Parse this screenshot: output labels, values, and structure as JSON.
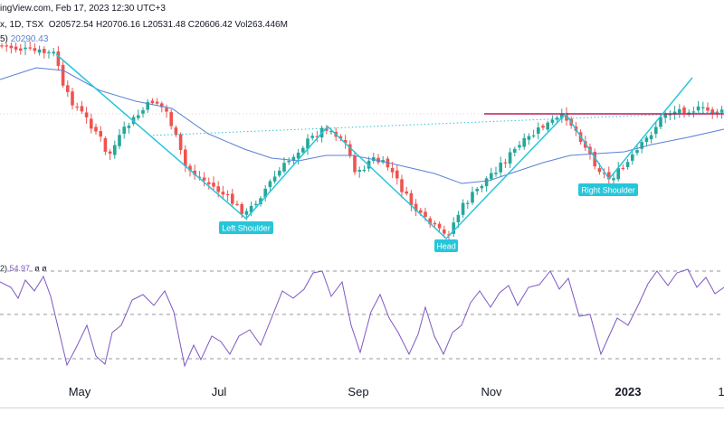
{
  "header": {
    "title_fragment": "ingView.com, Feb 17, 2023 12:30 UTC+3",
    "symbol_fragment": "x, 1D, TSX",
    "ohlc": {
      "O": "O20572.54",
      "H": "H20706.16",
      "L": "L20531.48",
      "C": "C20606.42",
      "Vol": "Vol263.446M"
    },
    "ma_fragment": "5)",
    "ma_value": "20290.43",
    "rsi_fragment": "2)",
    "rsi_value": "54.97",
    "rsi_zeros": "ø  ø"
  },
  "chart_data": {
    "type": "candlestick",
    "x_labels": [
      "May",
      "Jul",
      "Sep",
      "Nov",
      "2023",
      "1"
    ],
    "pattern_labels": [
      "Left Shoulder",
      "Head",
      "Right Shoulder"
    ],
    "neckline_style": "dotted",
    "resistance_line": "horizontal",
    "rsi_levels": [
      70,
      50,
      30
    ],
    "colors": {
      "up": "#26a69a",
      "down": "#ef5350",
      "ma": "#5b7fd6",
      "rsi": "#7e57c2",
      "pattern": "#26c6da",
      "resistance": "#c2185b",
      "label_bg": "#26c6da"
    }
  }
}
